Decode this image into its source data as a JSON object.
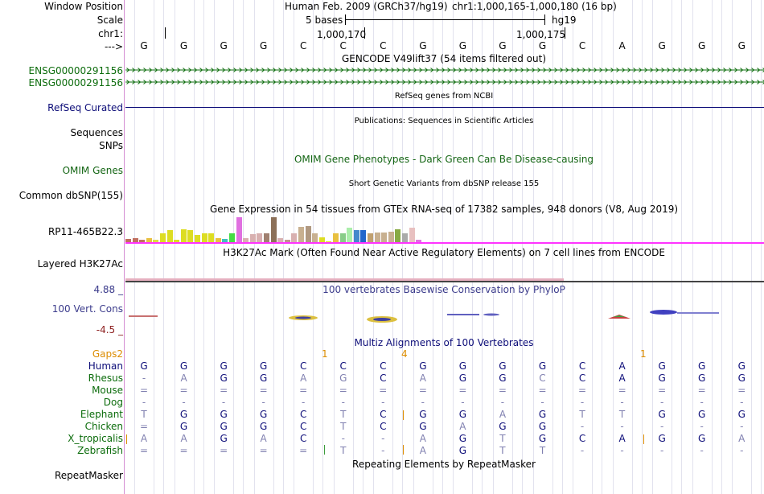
{
  "header": {
    "window_position_label": "Window Position",
    "assembly": "Human Feb. 2009 (GRCh37/hg19)",
    "position": "chr1:1,000,165-1,000,180 (16 bp)",
    "scale_label": "Scale",
    "scale_text": "5 bases",
    "scale_db": "hg19",
    "chrom_label": "chr1:",
    "tick1": "1,000,170",
    "tick2": "1,000,175",
    "arrow_label": "--->"
  },
  "bases": [
    "G",
    "G",
    "G",
    "G",
    "C",
    "C",
    "C",
    "G",
    "G",
    "G",
    "G",
    "C",
    "A",
    "G",
    "G",
    "G"
  ],
  "colors": {
    "gencode": "#0c6c0c",
    "refseq": "#0c0c78",
    "omim": "#156615",
    "phylop_label": "#3c3c8c",
    "phylop_min": "#8c1e1e",
    "multiz_title": "#0c0c78",
    "gaps": "#dc8c00",
    "species": "#0c0c78",
    "layered_line": "#be55be",
    "gtex_line": "#ff33ff"
  },
  "tracks": {
    "gencode_title": "GENCODE V49lift37 (54 items filtered out)",
    "gencode_items": [
      "ENSG00000291156",
      "ENSG00000291156"
    ],
    "refseq_title": "RefSeq genes from NCBI",
    "refseq_label": "RefSeq Curated",
    "pub_title": "Publications: Sequences in Scientific Articles",
    "sequences_label": "Sequences",
    "snps_label": "SNPs",
    "omim_title": "OMIM Gene Phenotypes - Dark Green Can Be Disease-causing",
    "omim_label": "OMIM Genes",
    "dbsnp_title": "Short Genetic Variants from dbSNP release 155",
    "dbsnp_label": "Common dbSNP(155)",
    "gtex_title": "Gene Expression in 54 tissues from GTEx RNA-seq of 17382 samples, 948 donors (V8, Aug 2019)",
    "gtex_label": "RP11-465B22.3",
    "h3k27ac_title": "H3K27Ac Mark (Often Found Near Active Regulatory Elements) on 7 cell lines from ENCODE",
    "h3k27ac_label": "Layered H3K27Ac",
    "phylop_title": "100 vertebrates Basewise Conservation by PhyloP",
    "phylop_max": "4.88 _",
    "phylop_label": "100 Vert. Cons",
    "phylop_min": "-4.5 _",
    "multiz_title": "Multiz Alignments of 100 Vertebrates",
    "gaps_label": "Gaps2",
    "gap_counts": [
      "1",
      "4",
      "1"
    ],
    "repeat_title": "Repeating Elements by RepeatMasker",
    "repeat_label": "RepeatMasker"
  },
  "gtex_expression": [
    {
      "value": 5,
      "color": "#c07060"
    },
    {
      "value": 6,
      "color": "#c07060"
    },
    {
      "value": 4,
      "color": "#c07060"
    },
    {
      "value": 6,
      "color": "#e8c040"
    },
    {
      "value": 4,
      "color": "#dcdc40"
    },
    {
      "value": 12,
      "color": "#dddd22"
    },
    {
      "value": 17,
      "color": "#dddd22"
    },
    {
      "value": 4,
      "color": "#dddd22"
    },
    {
      "value": 18,
      "color": "#dddd22"
    },
    {
      "value": 17,
      "color": "#dddd22"
    },
    {
      "value": 10,
      "color": "#dddd22"
    },
    {
      "value": 12,
      "color": "#dddd22"
    },
    {
      "value": 12,
      "color": "#dddd22"
    },
    {
      "value": 6,
      "color": "#e8c040"
    },
    {
      "value": 5,
      "color": "#40c0c0"
    },
    {
      "value": 12,
      "color": "#44dd44"
    },
    {
      "value": 33,
      "color": "#e070e0"
    },
    {
      "value": 6,
      "color": "#d8b0b0"
    },
    {
      "value": 11,
      "color": "#d8b0b0"
    },
    {
      "value": 12,
      "color": "#d8b0b0"
    },
    {
      "value": 12,
      "color": "#a08070"
    },
    {
      "value": 33,
      "color": "#8c7058"
    },
    {
      "value": 6,
      "color": "#d8b0b0"
    },
    {
      "value": 4,
      "color": "#c09090"
    },
    {
      "value": 12,
      "color": "#d8b0b0"
    },
    {
      "value": 21,
      "color": "#c8b090"
    },
    {
      "value": 22,
      "color": "#b09880"
    },
    {
      "value": 12,
      "color": "#c8b090"
    },
    {
      "value": 7,
      "color": "#dddd22"
    },
    {
      "value": 2,
      "color": "#dddd22"
    },
    {
      "value": 12,
      "color": "#e8c040"
    },
    {
      "value": 12,
      "color": "#88cc88"
    },
    {
      "value": 20,
      "color": "#aaeeaa"
    },
    {
      "value": 16,
      "color": "#4488cc"
    },
    {
      "value": 16,
      "color": "#2266cc"
    },
    {
      "value": 12,
      "color": "#c0a070"
    },
    {
      "value": 13,
      "color": "#c8b090"
    },
    {
      "value": 13,
      "color": "#c8b090"
    },
    {
      "value": 14,
      "color": "#c8b090"
    },
    {
      "value": 18,
      "color": "#88aa44"
    },
    {
      "value": 12,
      "color": "#aaaaaa"
    },
    {
      "value": 20,
      "color": "#e8c0c0"
    },
    {
      "value": 4,
      "color": "#e070e0"
    }
  ],
  "multiz": [
    {
      "species": "Human",
      "cells": [
        "G",
        "G",
        "G",
        "G",
        "C",
        "C",
        "C",
        "G",
        "G",
        "G",
        "G",
        "C",
        "A",
        "G",
        "G",
        "G"
      ]
    },
    {
      "species": "Rhesus",
      "cells": [
        "-",
        "A",
        "G",
        "G",
        "A",
        "G",
        "C",
        "A",
        "G",
        "G",
        "C",
        "C",
        "A",
        "G",
        "G",
        "G"
      ]
    },
    {
      "species": "Mouse",
      "cells": [
        "=",
        "=",
        "=",
        "=",
        "=",
        "=",
        "=",
        "=",
        "=",
        "=",
        "=",
        "=",
        "=",
        "=",
        "=",
        "="
      ]
    },
    {
      "species": "Dog",
      "cells": [
        "-",
        "-",
        "-",
        "-",
        "-",
        "-",
        "-",
        "-",
        "-",
        "-",
        "-",
        "-",
        "-",
        "-",
        "-",
        "-"
      ]
    },
    {
      "species": "Elephant",
      "cells": [
        "T",
        "G",
        "G",
        "G",
        "C",
        "T",
        "C",
        "G",
        "G",
        "A",
        "G",
        "T",
        "T",
        "G",
        "G",
        "G"
      ]
    },
    {
      "species": "Chicken",
      "cells": [
        "=",
        "G",
        "G",
        "G",
        "C",
        "T",
        "C",
        "G",
        "A",
        "G",
        "G",
        "-",
        "-",
        "-",
        "-",
        "-"
      ]
    },
    {
      "species": "X_tropicalis",
      "cells": [
        "A",
        "A",
        "G",
        "A",
        "C",
        "-",
        "-",
        "A",
        "G",
        "T",
        "G",
        "C",
        "A",
        "G",
        "G",
        "A"
      ]
    },
    {
      "species": "Zebrafish",
      "cells": [
        "=",
        "=",
        "=",
        "=",
        "=",
        "T",
        "-",
        "A",
        "G",
        "T",
        "T",
        "-",
        "-",
        "-",
        "-",
        "-"
      ]
    }
  ]
}
